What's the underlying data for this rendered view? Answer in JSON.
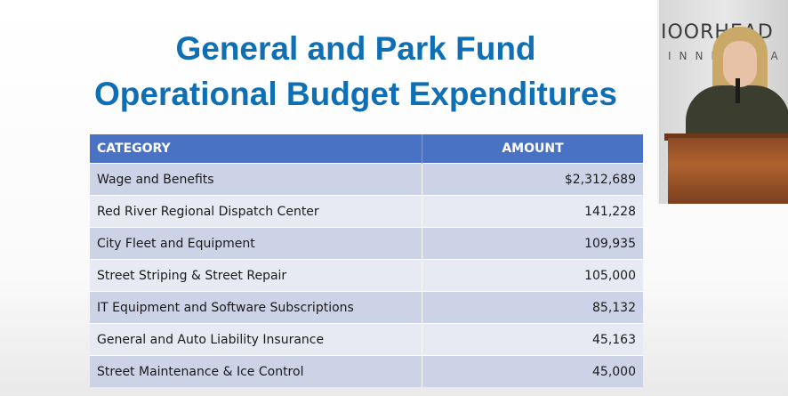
{
  "slide": {
    "title_line1": "General and Park Fund",
    "title_line2": "Operational Budget Expenditures"
  },
  "table": {
    "headers": [
      "CATEGORY",
      "AMOUNT"
    ],
    "rows": [
      {
        "category": "Wage and Benefits",
        "amount": "$2,312,689"
      },
      {
        "category": "Red River Regional Dispatch Center",
        "amount": "141,228"
      },
      {
        "category": "City Fleet and Equipment",
        "amount": "109,935"
      },
      {
        "category": "Street Striping & Street Repair",
        "amount": "105,000"
      },
      {
        "category": "IT Equipment and Software Subscriptions",
        "amount": "85,132"
      },
      {
        "category": "General and Auto Liability Insurance",
        "amount": "45,163"
      },
      {
        "category": "Street Maintenance & Ice Control",
        "amount": "45,000"
      }
    ]
  },
  "camera": {
    "sign_line1": "IOORHEAD",
    "sign_line2": "INNESOTA"
  },
  "colors": {
    "title": "#0f6fb5",
    "header_bg": "#4a72c4",
    "row_odd": "#cdd3e6",
    "row_even": "#e7eaf3"
  }
}
